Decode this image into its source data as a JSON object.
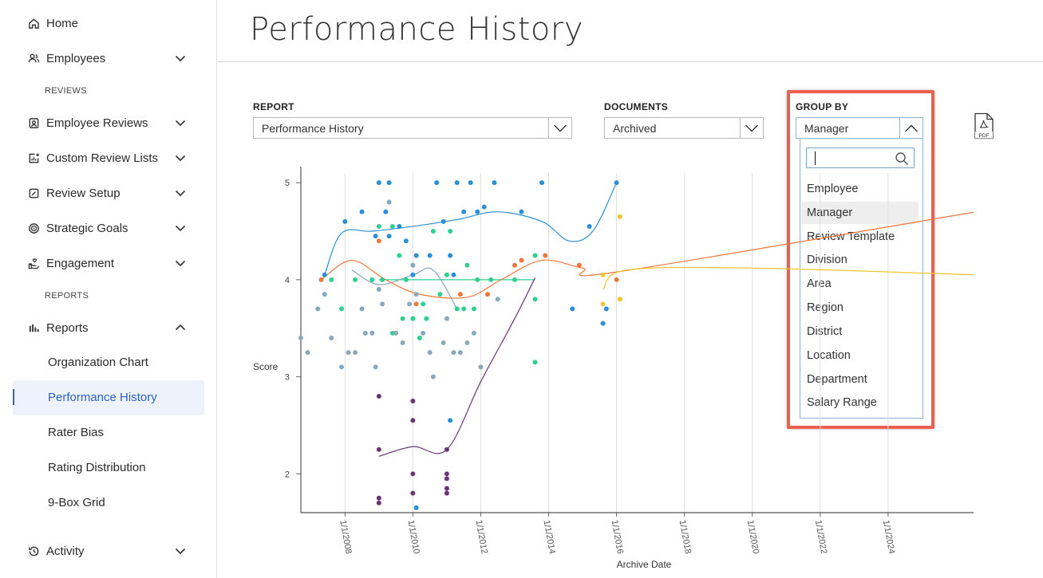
{
  "sidebar": {
    "items": [
      {
        "label": "Home",
        "icon": "home-icon"
      },
      {
        "label": "Employees",
        "icon": "users-icon"
      },
      {
        "label": "Employee Reviews",
        "icon": "badge-icon"
      },
      {
        "label": "Custom Review Lists",
        "icon": "list-chart-icon"
      },
      {
        "label": "Review Setup",
        "icon": "edit-icon"
      },
      {
        "label": "Strategic Goals",
        "icon": "target-icon"
      },
      {
        "label": "Engagement",
        "icon": "hand-heart-icon"
      },
      {
        "label": "Reports",
        "icon": "bar-chart-icon"
      },
      {
        "label": "Activity",
        "icon": "history-icon"
      }
    ],
    "sections": {
      "reviews": "REVIEWS",
      "reports": "REPORTS"
    },
    "report_sub": [
      "Organization Chart",
      "Performance History",
      "Rater Bias",
      "Rating Distribution",
      "9-Box Grid"
    ]
  },
  "page": {
    "title": "Performance History"
  },
  "filters": {
    "report": {
      "label": "REPORT",
      "value": "Performance History"
    },
    "documents": {
      "label": "DOCUMENTS",
      "value": "Archived"
    },
    "group_by": {
      "label": "GROUP BY",
      "value": "Manager",
      "search_placeholder": ""
    }
  },
  "group_options": [
    "Employee",
    "Manager",
    "Review Template",
    "Division",
    "Area",
    "Region",
    "District",
    "Location",
    "Department",
    "Salary Range"
  ],
  "selected_option": "Manager",
  "colors": {
    "accent": "#2a62c4",
    "highlight": "#ec5f4f"
  },
  "chart_data": {
    "type": "scatter",
    "xlabel": "Archive Date",
    "ylabel": "Score",
    "yticks": [
      "2",
      "3",
      "4",
      "5"
    ],
    "xticks": [
      "1/1/2008",
      "1/1/2010",
      "1/1/2012",
      "1/1/2014",
      "1/1/2016",
      "1/1/2018",
      "1/1/2020",
      "1/1/2022",
      "1/1/2024"
    ],
    "ylim": [
      1.6,
      5.1
    ],
    "xlim": [
      2006.7,
      2026.8
    ],
    "grid": "vertical",
    "series": [
      {
        "color": "#2a8fd6",
        "points": [
          [
            2007.4,
            4.05
          ],
          [
            2008.0,
            4.6
          ],
          [
            2008.5,
            4.7
          ],
          [
            2008.9,
            4.45
          ],
          [
            2009.0,
            5.0
          ],
          [
            2009.3,
            5.0
          ],
          [
            2009.2,
            4.7
          ],
          [
            2009.6,
            4.55
          ],
          [
            2009.3,
            4.45
          ],
          [
            2009.8,
            4.4
          ],
          [
            2010.0,
            4.05
          ],
          [
            2010.1,
            4.25
          ],
          [
            2010.5,
            4.25
          ],
          [
            2010.7,
            5.0
          ],
          [
            2010.9,
            4.6
          ],
          [
            2011.1,
            4.25
          ],
          [
            2011.2,
            4.05
          ],
          [
            2011.3,
            5.0
          ],
          [
            2011.5,
            4.7
          ],
          [
            2011.7,
            5.0
          ],
          [
            2011.9,
            4.7
          ],
          [
            2012.1,
            4.75
          ],
          [
            2012.4,
            5.0
          ],
          [
            2013.2,
            4.7
          ],
          [
            2013.8,
            5.0
          ],
          [
            2014.7,
            3.7
          ],
          [
            2015.2,
            4.55
          ],
          [
            2015.6,
            3.55
          ],
          [
            2015.7,
            3.7
          ],
          [
            2016.0,
            5.0
          ],
          [
            2011.1,
            2.55
          ],
          [
            2010.1,
            1.65
          ]
        ],
        "trend": [
          [
            2007.4,
            4.05
          ],
          [
            2007.9,
            4.48
          ],
          [
            2008.8,
            4.5
          ],
          [
            2010.0,
            4.55
          ],
          [
            2011.3,
            4.62
          ],
          [
            2012.5,
            4.7
          ],
          [
            2013.8,
            4.6
          ],
          [
            2014.6,
            4.4
          ],
          [
            2015.3,
            4.5
          ],
          [
            2016.0,
            5.0
          ]
        ]
      },
      {
        "color": "#2ecf8f",
        "points": [
          [
            2007.6,
            4.0
          ],
          [
            2007.9,
            3.7
          ],
          [
            2008.3,
            4.0
          ],
          [
            2008.8,
            4.0
          ],
          [
            2009.0,
            4.55
          ],
          [
            2009.4,
            4.55
          ],
          [
            2009.1,
            4.0
          ],
          [
            2009.6,
            4.25
          ],
          [
            2009.8,
            4.0
          ],
          [
            2010.0,
            3.6
          ],
          [
            2010.3,
            3.75
          ],
          [
            2010.4,
            3.6
          ],
          [
            2010.6,
            4.5
          ],
          [
            2010.8,
            3.85
          ],
          [
            2011.0,
            4.05
          ],
          [
            2011.3,
            3.7
          ],
          [
            2011.5,
            3.7
          ],
          [
            2011.6,
            4.15
          ],
          [
            2011.8,
            3.7
          ],
          [
            2011.9,
            4.0
          ],
          [
            2012.3,
            4.0
          ],
          [
            2013.0,
            4.0
          ],
          [
            2013.6,
            4.25
          ],
          [
            2013.6,
            3.8
          ],
          [
            2013.6,
            3.15
          ],
          [
            2009.7,
            3.6
          ],
          [
            2010.2,
            3.4
          ],
          [
            2009.4,
            3.45
          ],
          [
            2011.1,
            4.5
          ]
        ],
        "trend": [
          [
            2009.0,
            4.0
          ],
          [
            2013.6,
            4.0
          ]
        ]
      },
      {
        "color": "#87a9bd",
        "points": [
          [
            2006.7,
            3.4
          ],
          [
            2006.9,
            3.25
          ],
          [
            2007.2,
            3.7
          ],
          [
            2007.4,
            3.85
          ],
          [
            2007.6,
            3.4
          ],
          [
            2007.9,
            3.1
          ],
          [
            2008.1,
            3.25
          ],
          [
            2008.3,
            3.25
          ],
          [
            2008.5,
            3.7
          ],
          [
            2008.6,
            3.45
          ],
          [
            2008.8,
            3.45
          ],
          [
            2008.9,
            3.1
          ],
          [
            2009.1,
            3.75
          ],
          [
            2009.3,
            4.8
          ],
          [
            2009.5,
            3.45
          ],
          [
            2009.7,
            3.35
          ],
          [
            2009.9,
            3.75
          ],
          [
            2010.1,
            3.85
          ],
          [
            2010.3,
            3.45
          ],
          [
            2010.5,
            3.25
          ],
          [
            2010.6,
            3.0
          ],
          [
            2010.9,
            3.35
          ],
          [
            2011.0,
            3.6
          ],
          [
            2011.2,
            3.25
          ],
          [
            2011.4,
            3.25
          ],
          [
            2011.6,
            3.35
          ],
          [
            2011.8,
            3.45
          ],
          [
            2012.0,
            3.1
          ],
          [
            2012.5,
            3.8
          ],
          [
            2009.0,
            3.9
          ],
          [
            2010.0,
            4.15
          ]
        ],
        "trend": [
          [
            2008.2,
            4.1
          ],
          [
            2009.0,
            3.95
          ],
          [
            2010.0,
            4.05
          ],
          [
            2010.6,
            4.1
          ],
          [
            2011.3,
            3.7
          ]
        ]
      },
      {
        "color": "#f0773a",
        "points": [
          [
            2007.3,
            4.0
          ],
          [
            2009.0,
            4.4
          ],
          [
            2010.1,
            3.75
          ],
          [
            2011.4,
            3.85
          ],
          [
            2012.2,
            3.85
          ],
          [
            2013.0,
            4.15
          ],
          [
            2013.2,
            4.2
          ],
          [
            2013.9,
            4.25
          ],
          [
            2014.9,
            4.15
          ],
          [
            2016.0,
            4.0
          ],
          [
            2026.6,
            4.7
          ]
        ],
        "trend": [
          [
            2007.3,
            4.0
          ],
          [
            2008.2,
            4.2
          ],
          [
            2009.2,
            4.0
          ],
          [
            2010.2,
            3.85
          ],
          [
            2011.6,
            3.82
          ],
          [
            2012.6,
            4.0
          ],
          [
            2013.8,
            4.2
          ],
          [
            2015.0,
            4.12
          ],
          [
            2016.0,
            4.08
          ],
          [
            2026.6,
            4.7
          ]
        ]
      },
      {
        "color": "#f2c530",
        "points": [
          [
            2016.1,
            4.65
          ],
          [
            2015.6,
            4.05
          ],
          [
            2015.6,
            3.75
          ],
          [
            2016.1,
            3.8
          ],
          [
            2026.6,
            4.05
          ]
        ],
        "trend": [
          [
            2015.6,
            3.9
          ],
          [
            2016.3,
            4.1
          ],
          [
            2020.0,
            4.12
          ],
          [
            2026.6,
            4.05
          ]
        ]
      },
      {
        "color": "#6b3476",
        "points": [
          [
            2009.0,
            2.8
          ],
          [
            2009.0,
            2.25
          ],
          [
            2009.0,
            1.75
          ],
          [
            2009.0,
            1.7
          ],
          [
            2010.0,
            2.75
          ],
          [
            2010.0,
            2.55
          ],
          [
            2010.0,
            2.0
          ],
          [
            2010.0,
            1.8
          ],
          [
            2011.0,
            2.25
          ],
          [
            2011.0,
            2.0
          ],
          [
            2011.0,
            1.95
          ],
          [
            2011.0,
            1.85
          ],
          [
            2011.0,
            1.8
          ]
        ],
        "trend": [
          [
            2009.0,
            2.18
          ],
          [
            2010.0,
            2.28
          ],
          [
            2011.0,
            2.25
          ],
          [
            2012.0,
            2.95
          ],
          [
            2013.0,
            3.6
          ],
          [
            2013.6,
            4.02
          ]
        ]
      }
    ]
  }
}
